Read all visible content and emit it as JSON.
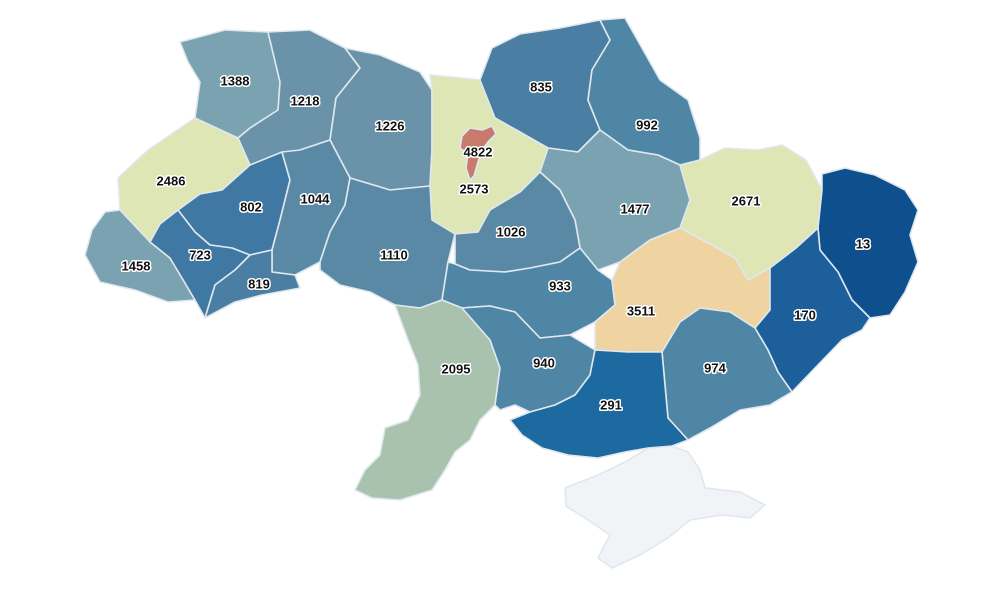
{
  "colors": {
    "scale_dark": "#0e4f8e",
    "scale_mid_dark": "#1d6aa0",
    "scale_mid": "#4a7ea2",
    "scale_muted": "#6a93aa",
    "scale_light": "#7aa2b1",
    "scale_grey_green": "#a9c2ae",
    "scale_pale": "#dde6b4",
    "scale_peach": "#efd4a2",
    "capital": "#c87a6c",
    "no_data": "#f1f3f7"
  },
  "regions": [
    {
      "id": "rivne",
      "value": "1388",
      "fill": "#7aa2b1"
    },
    {
      "id": "zhytomyr",
      "value": "1218",
      "fill": "#6a93aa"
    },
    {
      "id": "kyiv-oblast-north",
      "value": "1226",
      "fill": "#6a93aa"
    },
    {
      "id": "chernihiv",
      "value": "835",
      "fill": "#4a7ea2"
    },
    {
      "id": "sumy",
      "value": "992",
      "fill": "#4f86a6"
    },
    {
      "id": "volyn",
      "value": "2486",
      "fill": "#dde6b4"
    },
    {
      "id": "kyiv-city",
      "value": "4822",
      "fill": "#c87a6c"
    },
    {
      "id": "kyiv-oblast",
      "value": "2573",
      "fill": "#dde6b4"
    },
    {
      "id": "kharkiv",
      "value": "2671",
      "fill": "#dde6b4"
    },
    {
      "id": "luhansk",
      "value": "13",
      "fill": "#0e4f8e"
    },
    {
      "id": "lviv",
      "value": "802",
      "fill": "#3f78a3"
    },
    {
      "id": "khmelnytskyi",
      "value": "1044",
      "fill": "#5a89a6"
    },
    {
      "id": "poltava",
      "value": "1477",
      "fill": "#7aa2b1"
    },
    {
      "id": "cherkasy",
      "value": "1026",
      "fill": "#5a89a6"
    },
    {
      "id": "zakarpattia",
      "value": "1458",
      "fill": "#7aa2b1"
    },
    {
      "id": "ivano-frankivsk",
      "value": "723",
      "fill": "#3f78a3"
    },
    {
      "id": "vinnytsia",
      "value": "1110",
      "fill": "#5a89a6"
    },
    {
      "id": "chernivtsi",
      "value": "819",
      "fill": "#4a7ea2"
    },
    {
      "id": "kirovohrad",
      "value": "933",
      "fill": "#4f86a6"
    },
    {
      "id": "dnipropetrovsk",
      "value": "3511",
      "fill": "#efd4a2"
    },
    {
      "id": "donetsk",
      "value": "170",
      "fill": "#1d5f9a"
    },
    {
      "id": "odesa",
      "value": "2095",
      "fill": "#a9c2ae"
    },
    {
      "id": "mykolaiv",
      "value": "940",
      "fill": "#4f86a6"
    },
    {
      "id": "zaporizhzhia",
      "value": "974",
      "fill": "#4f86a6"
    },
    {
      "id": "kherson",
      "value": "291",
      "fill": "#1d6aa0"
    },
    {
      "id": "crimea",
      "value": "",
      "fill": "#f1f3f7"
    }
  ]
}
